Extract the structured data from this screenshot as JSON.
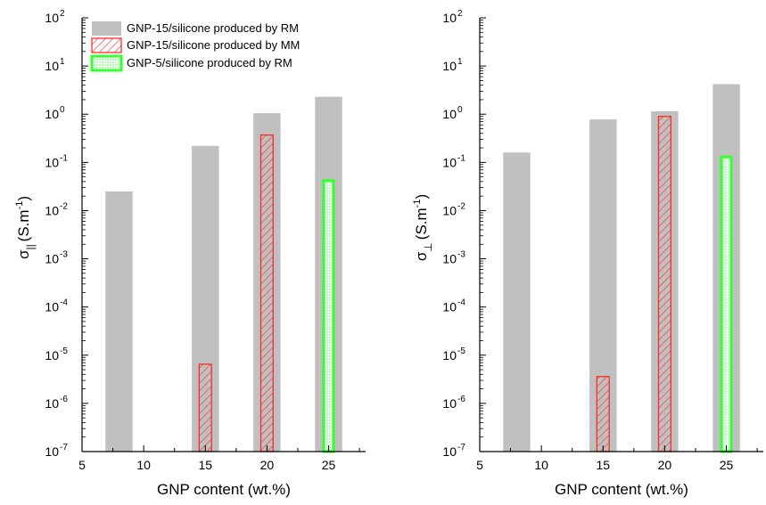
{
  "colors": {
    "rm_fill": "#c0c0c0",
    "mm_stroke": "#ff2a2a",
    "gnp5_fill": "#33ff33",
    "axis": "#000000"
  },
  "legend": {
    "placement": "top-left of left panel",
    "entries": [
      "GNP-15/silicone produced by RM",
      "GNP-15/silicone produced by MM",
      "GNP-5/silicone produced by RM"
    ]
  },
  "chart_data": [
    {
      "type": "bar",
      "scale": "log",
      "xlabel": "GNP content (wt.%)",
      "ylabel_main": "σ",
      "ylabel_sub": "||",
      "ylabel_unit": "(S.m",
      "ylabel_exp": "-1",
      "ylabel_close": ")",
      "xlim": [
        5,
        28
      ],
      "ylim": [
        1e-07,
        100
      ],
      "xticks": [
        "5",
        "10",
        "15",
        "20",
        "25"
      ],
      "xtick_values": [
        5,
        10,
        15,
        20,
        25
      ],
      "yticks": [
        {
          "base": "10",
          "exp": "-7",
          "v": 1e-07
        },
        {
          "base": "10",
          "exp": "-6",
          "v": 1e-06
        },
        {
          "base": "10",
          "exp": "-5",
          "v": 1e-05
        },
        {
          "base": "10",
          "exp": "-4",
          "v": 0.0001
        },
        {
          "base": "10",
          "exp": "-3",
          "v": 0.001
        },
        {
          "base": "10",
          "exp": "-2",
          "v": 0.01
        },
        {
          "base": "10",
          "exp": "-1",
          "v": 0.1
        },
        {
          "base": "10",
          "exp": "0",
          "v": 1
        },
        {
          "base": "10",
          "exp": "1",
          "v": 10
        },
        {
          "base": "10",
          "exp": "2",
          "v": 100
        }
      ],
      "series": [
        {
          "name": "GNP-15/silicone produced by RM",
          "style": "rm",
          "x": [
            8,
            15,
            20,
            25
          ],
          "values": [
            0.025,
            0.22,
            1.05,
            2.3
          ],
          "width": 2.2
        },
        {
          "name": "GNP-15/silicone produced by MM",
          "style": "mm",
          "x": [
            15,
            20
          ],
          "values": [
            6.5e-06,
            0.37
          ],
          "width": 1.0
        },
        {
          "name": "GNP-5/silicone produced by RM",
          "style": "gnp5",
          "x": [
            25
          ],
          "values": [
            0.042
          ],
          "width": 0.8
        }
      ]
    },
    {
      "type": "bar",
      "scale": "log",
      "xlabel": "GNP content (wt.%)",
      "ylabel_main": "σ",
      "ylabel_sub": "⊥",
      "ylabel_unit": "(S.m",
      "ylabel_exp": "-1",
      "ylabel_close": ")",
      "xlim": [
        5,
        28
      ],
      "ylim": [
        1e-07,
        100
      ],
      "xticks": [
        "5",
        "10",
        "15",
        "20",
        "25"
      ],
      "xtick_values": [
        5,
        10,
        15,
        20,
        25
      ],
      "yticks": [
        {
          "base": "10",
          "exp": "-7",
          "v": 1e-07
        },
        {
          "base": "10",
          "exp": "-6",
          "v": 1e-06
        },
        {
          "base": "10",
          "exp": "-5",
          "v": 1e-05
        },
        {
          "base": "10",
          "exp": "-4",
          "v": 0.0001
        },
        {
          "base": "10",
          "exp": "-3",
          "v": 0.001
        },
        {
          "base": "10",
          "exp": "-2",
          "v": 0.01
        },
        {
          "base": "10",
          "exp": "-1",
          "v": 0.1
        },
        {
          "base": "10",
          "exp": "0",
          "v": 1
        },
        {
          "base": "10",
          "exp": "1",
          "v": 10
        },
        {
          "base": "10",
          "exp": "2",
          "v": 100
        }
      ],
      "series": [
        {
          "name": "GNP-15/silicone produced by RM",
          "style": "rm",
          "x": [
            8,
            15,
            20,
            25
          ],
          "values": [
            0.16,
            0.78,
            1.15,
            4.2
          ],
          "width": 2.2
        },
        {
          "name": "GNP-15/silicone produced by MM",
          "style": "mm",
          "x": [
            15,
            20
          ],
          "values": [
            3.6e-06,
            0.9
          ],
          "width": 1.0
        },
        {
          "name": "GNP-5/silicone produced by RM",
          "style": "gnp5",
          "x": [
            25
          ],
          "values": [
            0.13
          ],
          "width": 0.8
        }
      ]
    }
  ]
}
